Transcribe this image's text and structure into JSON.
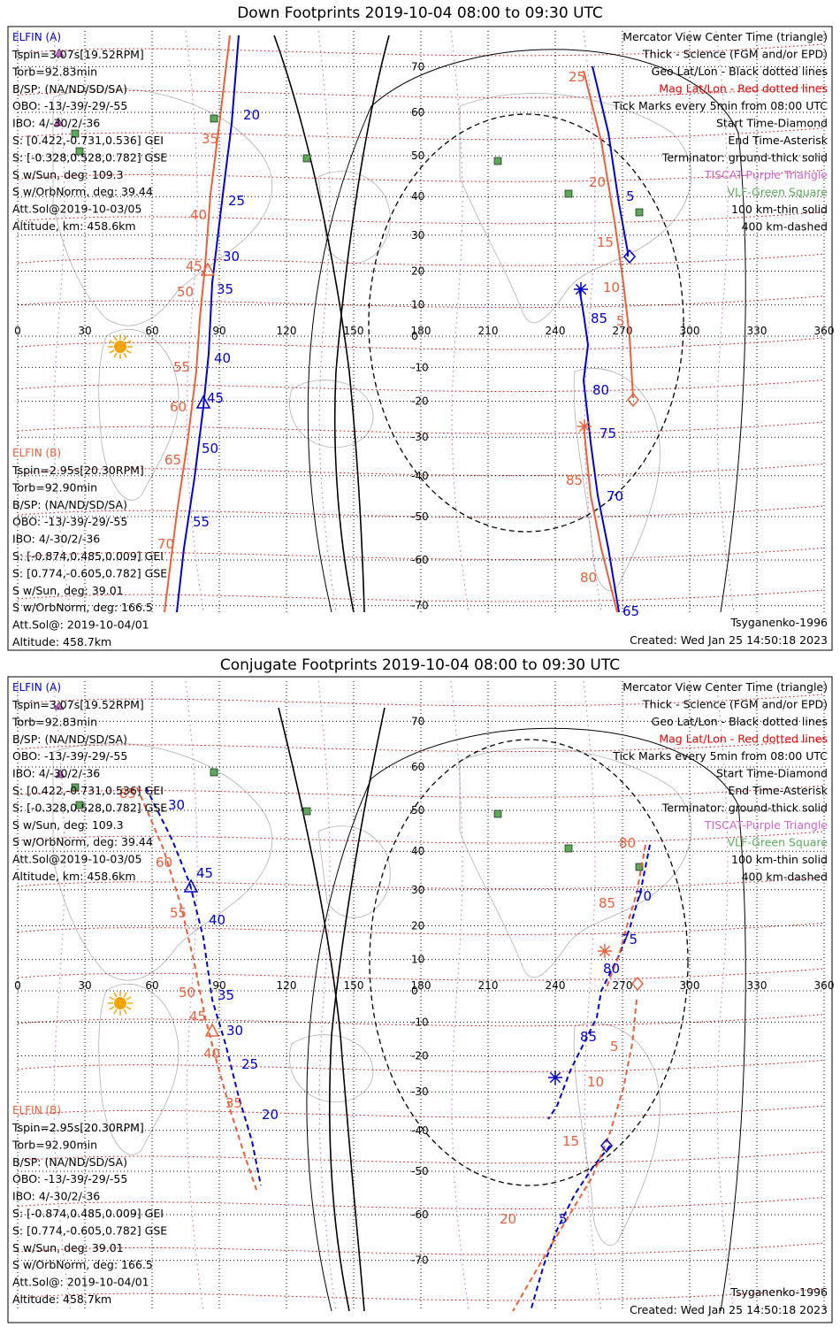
{
  "colors": {
    "elfin_a": "#0000cc",
    "elfin_b": "#e8603c",
    "mag_grid": "#dd0000",
    "tiscat": "#cc66cc",
    "vlf": "#5aaa5a",
    "geo_grid": "#000000",
    "land": "#b0b0b0",
    "sun": "#f5a300"
  },
  "panels": [
    {
      "title": "Down Footprints 2019-10-04 08:00 to 09:30 UTC",
      "elfin_a": {
        "header": "ELFIN (A)",
        "lines": [
          "Tspin=3.07s[19.52RPM]",
          "Torb=92.83min",
          "B/SP: (NA/ND/SD/SA)",
          "OBO: -13/-39/-29/-55",
          "IBO: 4/-30/2/-36",
          "S: [0.422,-0.731,0.536] GEI",
          "S: [-0.328,0.528,0.782] GSE",
          "S w/Sun, deg: 109.3",
          "S w/OrbNorm, deg: 39.44",
          "Att.Sol@2019-10-03/05",
          "Altitude, km: 458.6km"
        ]
      },
      "elfin_b": {
        "header": "ELFIN (B)",
        "lines": [
          "Tspin=2.95s[20.30RPM]",
          "Torb=92.90min",
          "B/SP: (NA/ND/SD/SA)",
          "OBO: -13/-39/-29/-55",
          "IBO: 4/-30/2/-36",
          "S: [-0.874,0.485,0.009] GEI",
          "S: [0.774,-0.605,0.782] GSE",
          "S w/Sun, deg: 39.01",
          "S w/OrbNorm, deg: 166.5",
          "Att.Sol@: 2019-10-04/01",
          "Altitude: 458.7km"
        ]
      },
      "legend": [
        {
          "text": "Mercator View Center Time (triangle)",
          "color": "#000000"
        },
        {
          "text": "Thick - Science (FGM and/or EPD)",
          "color": "#000000"
        },
        {
          "text": "Geo Lat/Lon - Black dotted lines",
          "color": "#000000"
        },
        {
          "text": "Mag Lat/Lon - Red dotted lines",
          "color": "#dd0000"
        },
        {
          "text": "Tick Marks every 5min from 08:00 UTC",
          "color": "#000000"
        },
        {
          "text": "Start Time-Diamond",
          "color": "#000000"
        },
        {
          "text": "End Time-Asterisk",
          "color": "#000000"
        },
        {
          "text": "Terminator: ground-thick solid",
          "color": "#000000"
        },
        {
          "text": "TISCAT-Purple Triangle",
          "color": "#cc66cc"
        },
        {
          "text": "VLF-Green Square",
          "color": "#5aaa5a"
        },
        {
          "text": "100 km-thin solid",
          "color": "#000000"
        },
        {
          "text": "400 km-dashed",
          "color": "#000000"
        }
      ],
      "footer_left": "",
      "footer_model": "Tsyganenko-1996",
      "footer_created": "Created: Wed Jan 25 14:50:18 2023",
      "lat_labels": [
        "70",
        "60",
        "50",
        "40",
        "30",
        "20",
        "10",
        "0",
        "-10",
        "-20",
        "-30",
        "-40",
        "-50",
        "-60",
        "-70"
      ],
      "lon_labels": [
        "0",
        "30",
        "60",
        "90",
        "120",
        "150",
        "180",
        "210",
        "240",
        "270",
        "300",
        "330",
        "360"
      ],
      "track_a_labels": [
        "20",
        "25",
        "30",
        "35",
        "40",
        "45",
        "50",
        "55",
        "5",
        "85",
        "80",
        "75",
        "70",
        "65"
      ],
      "track_b_labels": [
        "35",
        "40",
        "45",
        "50",
        "55",
        "60",
        "65",
        "70",
        "25",
        "20",
        "15",
        "10",
        "5",
        "85",
        "80"
      ]
    },
    {
      "title": "Conjugate Footprints 2019-10-04 08:00 to 09:30 UTC",
      "elfin_a": {
        "header": "ELFIN (A)",
        "lines": [
          "Tspin=3.07s[19.52RPM]",
          "Torb=92.83min",
          "B/SP: (NA/ND/SD/SA)",
          "OBO: -13/-39/-29/-55",
          "IBO: 4/-30/2/-36",
          "S: [0.422,-0.731,0.536] GEI",
          "S: [-0.328,0.528,0.782] GSE",
          "S w/Sun, deg: 109.3",
          "S w/OrbNorm, deg: 39.44",
          "Att.Sol@2019-10-03/05",
          "Altitude, km: 458.6km"
        ]
      },
      "elfin_b": {
        "header": "ELFIN (B)",
        "lines": [
          "Tspin=2.95s[20.30RPM]",
          "Torb=92.90min",
          "B/SP: (NA/ND/SD/SA)",
          "OBO: -13/-39/-29/-55",
          "IBO: 4/-30/2/-36",
          "S: [-0.874,0.485,0.009] GEI",
          "S: [0.774,-0.605,0.782] GSE",
          "S w/Sun, deg: 39.01",
          "S w/OrbNorm, deg: 166.5",
          "Att.Sol@: 2019-10-04/01",
          "Altitude: 458.7km"
        ]
      },
      "legend": [
        {
          "text": "Mercator View Center Time (triangle)",
          "color": "#000000"
        },
        {
          "text": "Thick - Science (FGM and/or EPD)",
          "color": "#000000"
        },
        {
          "text": "Geo Lat/Lon - Black dotted lines",
          "color": "#000000"
        },
        {
          "text": "Mag Lat/Lon - Red dotted lines",
          "color": "#dd0000"
        },
        {
          "text": "Tick Marks every 5min from 08:00 UTC",
          "color": "#000000"
        },
        {
          "text": "Start Time-Diamond",
          "color": "#000000"
        },
        {
          "text": "End Time-Asterisk",
          "color": "#000000"
        },
        {
          "text": "Terminator: ground-thick solid",
          "color": "#000000"
        },
        {
          "text": "TISCAT-Purple Triangle",
          "color": "#cc66cc"
        },
        {
          "text": "VLF-Green Square",
          "color": "#5aaa5a"
        },
        {
          "text": "100 km-thin solid",
          "color": "#000000"
        },
        {
          "text": "400 km-dashed",
          "color": "#000000"
        }
      ],
      "footer_left": "",
      "footer_model": "Tsyganenko-1996",
      "footer_created": "Created: Wed Jan 25 14:50:18 2023",
      "lat_labels": [
        "70",
        "60",
        "50",
        "40",
        "30",
        "20",
        "10",
        "0",
        "-10",
        "-20",
        "-30",
        "-40",
        "-50",
        "-60",
        "-70"
      ],
      "lon_labels": [
        "0",
        "30",
        "60",
        "90",
        "120",
        "150",
        "180",
        "210",
        "240",
        "270",
        "300",
        "330",
        "360"
      ],
      "track_a_labels": [
        "30",
        "45",
        "40",
        "35",
        "30",
        "25",
        "20",
        "70",
        "75",
        "80",
        "85",
        "5"
      ],
      "track_b_labels": [
        "85",
        "60",
        "55",
        "50",
        "45",
        "40",
        "35",
        "80",
        "85",
        "5",
        "10",
        "15",
        "20"
      ]
    }
  ]
}
